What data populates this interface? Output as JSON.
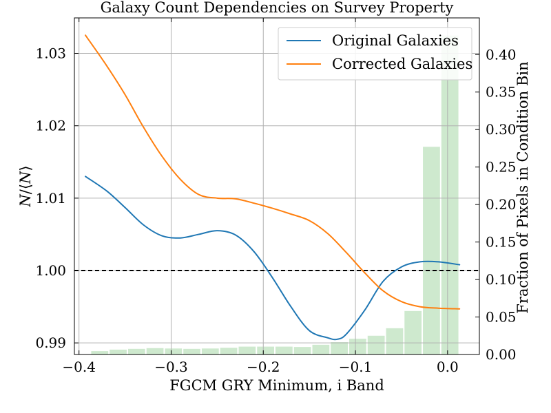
{
  "chart_data": {
    "type": "line",
    "title": "Galaxy Count Dependencies on Survey Property",
    "xlabel": "FGCM GRY Minimum, i Band",
    "ylabel": "N/⟨N⟩",
    "ylabel_right": "Fraction of Pixels in Condition Bin",
    "xlim": [
      -0.405,
      0.0345
    ],
    "ylim": [
      0.9884,
      1.0349
    ],
    "ylim_right": [
      0.0,
      0.4489
    ],
    "x_ticks": [
      -0.4,
      -0.3,
      -0.2,
      -0.1,
      0.0
    ],
    "x_tick_labels": [
      "−0.4",
      "−0.3",
      "−0.2",
      "−0.1",
      "0.0"
    ],
    "y_ticks": [
      0.99,
      1.0,
      1.01,
      1.02,
      1.03
    ],
    "y_tick_labels": [
      "0.99",
      "1.00",
      "1.01",
      "1.02",
      "1.03"
    ],
    "y_right_ticks": [
      0.0,
      0.05,
      0.1,
      0.15,
      0.2,
      0.25,
      0.3,
      0.35,
      0.4
    ],
    "y_right_tick_labels": [
      "0.00",
      "0.05",
      "0.10",
      "0.15",
      "0.20",
      "0.25",
      "0.30",
      "0.35",
      "0.40"
    ],
    "grid": true,
    "legend_position": "top-right",
    "reference_line": {
      "y": 1.0,
      "style": "dashed",
      "color": "#000000"
    },
    "series": [
      {
        "name": "Original Galaxies",
        "color": "#1f77b4",
        "x": [
          -0.393,
          -0.37,
          -0.35,
          -0.33,
          -0.31,
          -0.29,
          -0.27,
          -0.25,
          -0.23,
          -0.21,
          -0.19,
          -0.17,
          -0.15,
          -0.13,
          -0.12,
          -0.11,
          -0.09,
          -0.07,
          -0.05,
          -0.03,
          -0.01,
          0.013
        ],
        "y": [
          1.013,
          1.011,
          1.0087,
          1.0063,
          1.0048,
          1.0045,
          1.005,
          1.0055,
          1.0049,
          1.0026,
          0.999,
          0.995,
          0.9917,
          0.9907,
          0.9905,
          0.9912,
          0.9945,
          0.9985,
          1.0005,
          1.0012,
          1.0012,
          1.0008
        ]
      },
      {
        "name": "Corrected Galaxies",
        "color": "#ff7f0e",
        "x": [
          -0.393,
          -0.37,
          -0.35,
          -0.33,
          -0.31,
          -0.29,
          -0.27,
          -0.25,
          -0.23,
          -0.21,
          -0.19,
          -0.17,
          -0.15,
          -0.13,
          -0.11,
          -0.09,
          -0.07,
          -0.05,
          -0.03,
          -0.01,
          0.013
        ],
        "y": [
          1.0325,
          1.0283,
          1.0243,
          1.0198,
          1.0158,
          1.0126,
          1.0105,
          1.01,
          1.0099,
          1.0093,
          1.0086,
          1.0078,
          1.0069,
          1.0051,
          1.0025,
          0.9997,
          0.9972,
          0.9957,
          0.995,
          0.9948,
          0.9947
        ]
      }
    ],
    "histogram": {
      "name": "Fraction of Pixels in Condition Bin",
      "color": "#2ca02c",
      "opacity": 0.23,
      "bin_width": 0.02,
      "bin_centers": [
        -0.3975,
        -0.3775,
        -0.3575,
        -0.3375,
        -0.3175,
        -0.2975,
        -0.2775,
        -0.2575,
        -0.2375,
        -0.2175,
        -0.1975,
        -0.1775,
        -0.1575,
        -0.1375,
        -0.1175,
        -0.0975,
        -0.0775,
        -0.0575,
        -0.0375,
        -0.0175,
        0.0025
      ],
      "values": [
        0.0,
        0.0045,
        0.0065,
        0.0075,
        0.0085,
        0.008,
        0.0075,
        0.008,
        0.009,
        0.0105,
        0.0105,
        0.0105,
        0.01,
        0.013,
        0.0165,
        0.021,
        0.025,
        0.035,
        0.058,
        0.277,
        0.4255
      ]
    }
  }
}
